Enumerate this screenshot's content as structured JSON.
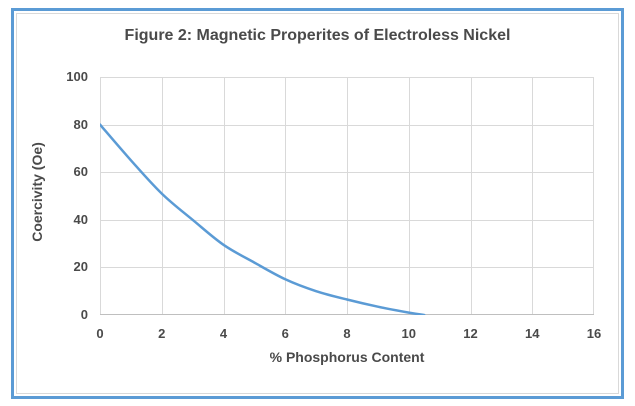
{
  "frame": {
    "border_color": "#5B9BD5",
    "inner_border_color": "#D9D9D9",
    "background": "#FFFFFF"
  },
  "chart_data": {
    "type": "line",
    "title": "Figure 2: Magnetic Properites of Electroless Nickel",
    "xlabel": "% Phosphorus Content",
    "ylabel": "Coercivity (Oe)",
    "xlim": [
      0,
      16
    ],
    "ylim": [
      0,
      100
    ],
    "x_ticks": [
      0,
      2,
      4,
      6,
      8,
      10,
      12,
      14,
      16
    ],
    "y_ticks": [
      0,
      20,
      40,
      60,
      80,
      100
    ],
    "grid": true,
    "legend": false,
    "markers": false,
    "series": [
      {
        "name": "Coercivity (Oe)",
        "color": "#5B9BD5",
        "line_width": 2.5,
        "x": [
          0,
          1,
          2,
          3,
          4,
          5,
          6,
          7,
          8,
          9,
          10,
          10.5
        ],
        "y": [
          80,
          65,
          51,
          40,
          29.5,
          22,
          15,
          10,
          6.5,
          3.5,
          1,
          0
        ]
      }
    ],
    "colors": {
      "gridline": "#D9D9D9",
      "axis_line": "#BFBFBF",
      "text": "#4A4A4A"
    }
  }
}
